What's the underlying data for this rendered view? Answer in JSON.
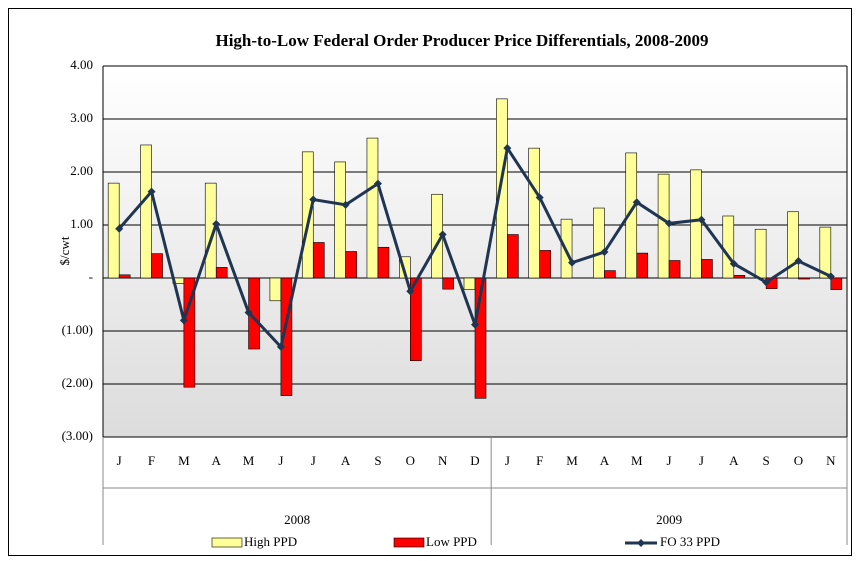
{
  "chart_data": {
    "type": "bar-line",
    "title": "High-to-Low Federal Order Producer Price Differentials, 2008-2009",
    "y_label": "$/cwt",
    "categories": [
      "J",
      "F",
      "M",
      "A",
      "M",
      "J",
      "J",
      "A",
      "S",
      "O",
      "N",
      "D",
      "J",
      "F",
      "M",
      "A",
      "M",
      "J",
      "J",
      "A",
      "S",
      "O",
      "N"
    ],
    "groups": [
      {
        "label": "2008",
        "count": 12
      },
      {
        "label": "2009",
        "count": 11
      }
    ],
    "series": [
      {
        "name": "High PPD",
        "type": "bar",
        "color": "#ffff99",
        "values": [
          1.79,
          2.51,
          -0.1,
          1.79,
          0,
          -0.43,
          2.38,
          2.19,
          2.64,
          0.4,
          1.58,
          -0.22,
          3.38,
          2.45,
          1.11,
          1.32,
          2.36,
          1.96,
          2.04,
          1.17,
          0.92,
          1.25,
          0.96
        ]
      },
      {
        "name": "Low PPD",
        "type": "bar",
        "color": "#ff0000",
        "values": [
          0.06,
          0.46,
          -2.06,
          0.2,
          -1.34,
          -2.22,
          0.67,
          0.5,
          0.58,
          -1.56,
          -0.21,
          -2.27,
          0.82,
          0.52,
          0,
          0.14,
          0.47,
          0.33,
          0.35,
          0.05,
          -0.2,
          -0.02,
          -0.22
        ]
      },
      {
        "name": "FO 33 PPD",
        "type": "line",
        "color": "#1f3552",
        "values": [
          0.93,
          1.63,
          -0.8,
          1.02,
          -0.65,
          -1.3,
          1.48,
          1.38,
          1.78,
          -0.25,
          0.82,
          -0.88,
          2.45,
          1.52,
          0.29,
          0.49,
          1.43,
          1.03,
          1.1,
          0.27,
          -0.08,
          0.32,
          0.03
        ]
      }
    ],
    "ylim": [
      -3,
      4
    ],
    "yticks": [
      {
        "value": -3,
        "label": "(3.00)"
      },
      {
        "value": -2,
        "label": "(2.00)"
      },
      {
        "value": -1,
        "label": "(1.00)"
      },
      {
        "value": 0,
        "label": "-"
      },
      {
        "value": 1,
        "label": "1.00"
      },
      {
        "value": 2,
        "label": "2.00"
      },
      {
        "value": 3,
        "label": "3.00"
      },
      {
        "value": 4,
        "label": "4.00"
      }
    ],
    "grid": true,
    "legend": "bottom"
  }
}
